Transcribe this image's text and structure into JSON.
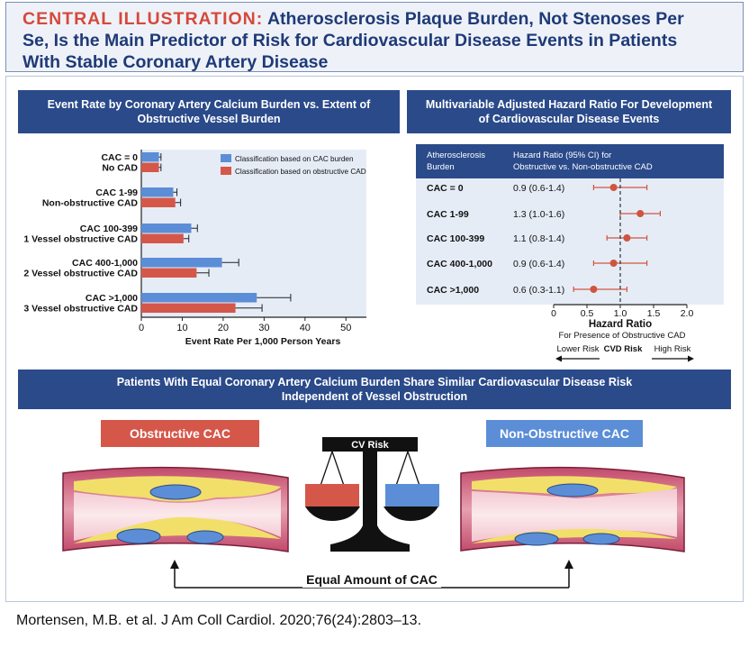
{
  "title": {
    "prefix": "CENTRAL ILLUSTRATION:",
    "line1": "Atherosclerosis Plaque Burden, Not Stenoses Per",
    "line2": "Se, Is the Main Predictor of Risk for Cardiovascular Disease Events in Patients",
    "line3": "With Stable Coronary Artery Disease"
  },
  "left_header": {
    "line1": "Event Rate by Coronary Artery Calcium Burden vs. Extent of",
    "line2": "Obstructive Vessel Burden"
  },
  "right_header": {
    "line1": "Multivariable Adjusted Hazard Ratio For Development",
    "line2": "of Cardiovascular Disease Events"
  },
  "bottom_header": {
    "line1": "Patients With Equal Coronary Artery Calcium Burden Share Similar Cardiovascular Disease Risk",
    "line2": "Independent of Vessel Obstruction"
  },
  "colors": {
    "cac": "#5b8ed6",
    "obstructive": "#d5574a",
    "navy": "#2a4a8a",
    "dot": "#cf5540"
  },
  "chart_data": [
    {
      "type": "bar",
      "orientation": "horizontal",
      "xlabel": "Event Rate Per 1,000 Person Years",
      "xlim": [
        0,
        55
      ],
      "xticks": [
        0,
        10,
        20,
        30,
        40,
        50
      ],
      "legend": [
        {
          "label": "Classification based on CAC burden",
          "color": "#5b8ed6"
        },
        {
          "label": "Classification based on obstructive CAD",
          "color": "#d5574a"
        }
      ],
      "groups": [
        {
          "cac_label": "CAC = 0",
          "obs_label": "No CAD",
          "cac_value": 4.3,
          "cac_err": 0.5,
          "obs_value": 4.3,
          "obs_err": 0.5
        },
        {
          "cac_label": "CAC 1-99",
          "obs_label": "Non-obstructive CAD",
          "cac_value": 7.8,
          "cac_err": 0.9,
          "obs_value": 8.3,
          "obs_err": 1.3
        },
        {
          "cac_label": "CAC 100-399",
          "obs_label": "1 Vessel obstructive CAD",
          "cac_value": 12.2,
          "cac_err": 1.5,
          "obs_value": 10.3,
          "obs_err": 1.3
        },
        {
          "cac_label": "CAC 400-1,000",
          "obs_label": "2 Vessel obstructive CAD",
          "cac_value": 19.7,
          "cac_err": 4.1,
          "obs_value": 13.5,
          "obs_err": 3.0
        },
        {
          "cac_label": "CAC >1,000",
          "obs_label": "3 Vessel obstructive CAD",
          "cac_value": 28.2,
          "cac_err": 8.3,
          "obs_value": 23.0,
          "obs_err": 6.5
        }
      ]
    },
    {
      "type": "forest",
      "col1_header_line1": "Atherosclerosis",
      "col1_header_line2": "Burden",
      "col2_header_line1": "Hazard Ratio (95% CI) for",
      "col2_header_line2": "Obstructive vs. Non-obstructive CAD",
      "rows": [
        {
          "label": "CAC = 0",
          "text": "0.9 (0.6-1.4)",
          "hr": 0.9,
          "lo": 0.6,
          "hi": 1.4
        },
        {
          "label": "CAC 1-99",
          "text": "1.3 (1.0-1.6)",
          "hr": 1.3,
          "lo": 1.0,
          "hi": 1.6
        },
        {
          "label": "CAC 100-399",
          "text": "1.1 (0.8-1.4)",
          "hr": 1.1,
          "lo": 0.8,
          "hi": 1.4
        },
        {
          "label": "CAC 400-1,000",
          "text": "0.9 (0.6-1.4)",
          "hr": 0.9,
          "lo": 0.6,
          "hi": 1.4
        },
        {
          "label": "CAC >1,000",
          "text": "0.6 (0.3-1.1)",
          "hr": 0.6,
          "lo": 0.3,
          "hi": 1.1
        }
      ],
      "xlim": [
        0,
        2.0
      ],
      "xticks": [
        "0",
        "0.5",
        "1.0",
        "1.5",
        "2.0"
      ],
      "reference": 1.0,
      "xlabel": "Hazard Ratio",
      "xsublabel": "For Presence of Obstructive CAD",
      "arrow_left": "Lower Risk",
      "arrow_mid": "CVD Risk",
      "arrow_right": "High Risk"
    }
  ],
  "illustration": {
    "left_label": "Obstructive CAC",
    "right_label": "Non-Obstructive CAC",
    "scale_label": "CV Risk",
    "bottom_label": "Equal Amount of CAC"
  },
  "footer": "Mortensen, M.B. et al. J Am Coll Cardiol. 2020;76(24):2803–13."
}
